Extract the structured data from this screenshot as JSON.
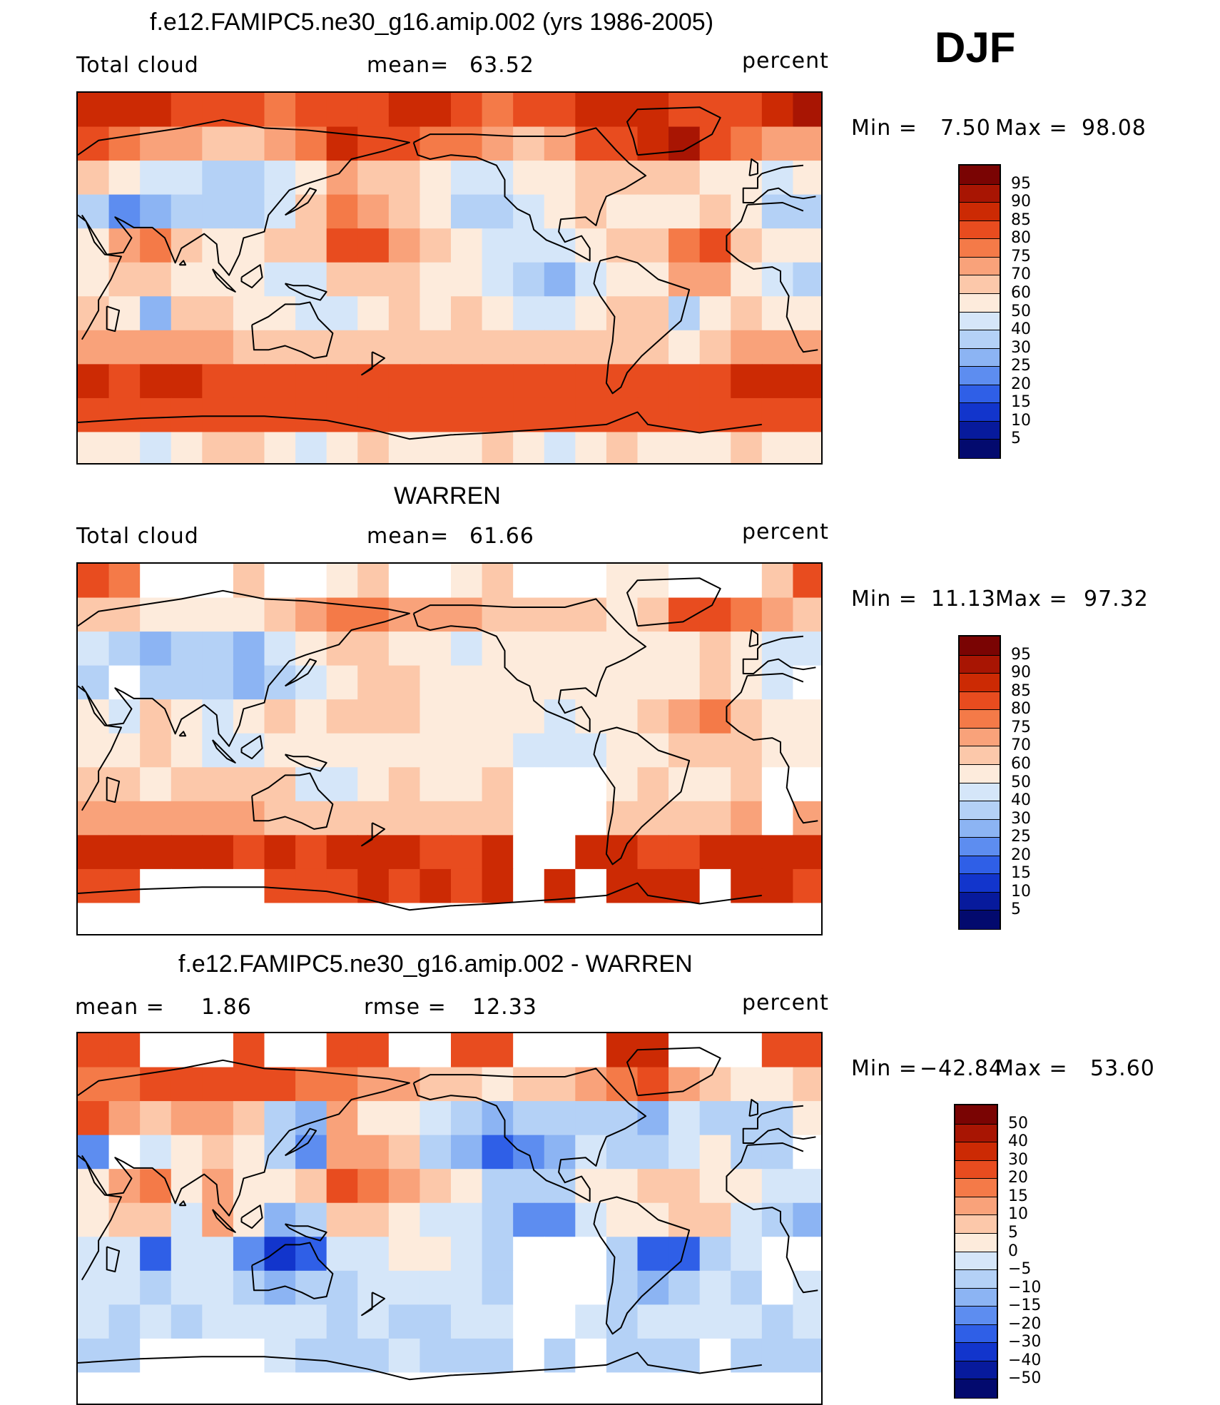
{
  "season": "DJF",
  "panels": [
    {
      "title": "f.e12.FAMIPC5.ne30_g16.amip.002 (yrs 1986-2005)",
      "left_label": "Total cloud",
      "stat1_label": "mean=",
      "stat1_value": "63.52",
      "stat2_label": "",
      "stat2_value": "",
      "units": "percent",
      "min_label": "Min =",
      "min_value": "7.50",
      "max_label": "Max =",
      "max_value": "98.08",
      "colorbar": {
        "levels": [
          "95",
          "90",
          "85",
          "80",
          "75",
          "70",
          "60",
          "50",
          "40",
          "30",
          "25",
          "20",
          "15",
          "10",
          "5"
        ],
        "colors": [
          "#7a0403",
          "#a81503",
          "#cc2a04",
          "#e84c1f",
          "#f47a48",
          "#f9a27a",
          "#fcc8aa",
          "#fdebdc",
          "#d5e6f9",
          "#b4d1f6",
          "#8cb4f3",
          "#5d8df0",
          "#2f5fe7",
          "#1235cc",
          "#071a9c",
          "#030a6e"
        ]
      },
      "map_values": [
        [
          88,
          85,
          86,
          84,
          82,
          80,
          78,
          80,
          82,
          84,
          86,
          86,
          82,
          78,
          80,
          84,
          86,
          88,
          86,
          82,
          80,
          82,
          86,
          90
        ],
        [
          82,
          78,
          74,
          70,
          66,
          64,
          70,
          78,
          88,
          84,
          80,
          78,
          76,
          70,
          66,
          72,
          80,
          84,
          86,
          90,
          82,
          76,
          72,
          74
        ],
        [
          62,
          56,
          48,
          40,
          36,
          38,
          44,
          56,
          72,
          66,
          60,
          52,
          44,
          48,
          54,
          58,
          60,
          64,
          62,
          60,
          58,
          52,
          46,
          50
        ],
        [
          30,
          24,
          26,
          34,
          36,
          30,
          42,
          62,
          76,
          70,
          66,
          52,
          38,
          34,
          44,
          56,
          62,
          58,
          52,
          56,
          64,
          52,
          34,
          30
        ],
        [
          58,
          70,
          78,
          60,
          54,
          56,
          62,
          64,
          82,
          80,
          70,
          64,
          58,
          48,
          40,
          42,
          56,
          62,
          66,
          78,
          80,
          64,
          50,
          54
        ],
        [
          56,
          64,
          68,
          50,
          54,
          50,
          44,
          46,
          62,
          66,
          60,
          54,
          50,
          42,
          32,
          28,
          44,
          56,
          58,
          72,
          70,
          58,
          40,
          38
        ],
        [
          60,
          58,
          26,
          60,
          62,
          58,
          56,
          48,
          40,
          58,
          62,
          58,
          60,
          56,
          48,
          44,
          56,
          62,
          60,
          30,
          56,
          60,
          58,
          56
        ],
        [
          72,
          70,
          70,
          72,
          70,
          68,
          66,
          66,
          62,
          64,
          66,
          66,
          64,
          64,
          62,
          62,
          64,
          66,
          68,
          56,
          66,
          70,
          70,
          70
        ],
        [
          86,
          84,
          86,
          86,
          84,
          82,
          84,
          84,
          82,
          82,
          84,
          84,
          82,
          82,
          82,
          84,
          82,
          84,
          84,
          80,
          84,
          86,
          86,
          86
        ],
        [
          80,
          82,
          84,
          82,
          80,
          82,
          82,
          80,
          82,
          82,
          80,
          80,
          82,
          82,
          80,
          80,
          82,
          82,
          80,
          82,
          82,
          82,
          80,
          80
        ],
        [
          58,
          56,
          48,
          52,
          60,
          64,
          56,
          46,
          54,
          62,
          58,
          50,
          56,
          60,
          54,
          48,
          56,
          62,
          56,
          50,
          58,
          62,
          56,
          54
        ]
      ]
    },
    {
      "title": "WARREN",
      "left_label": "Total cloud",
      "stat1_label": "mean=",
      "stat1_value": "61.66",
      "stat2_label": "",
      "stat2_value": "",
      "units": "percent",
      "min_label": "Min =",
      "min_value": "11.13",
      "max_label": "Max =",
      "max_value": "97.32",
      "colorbar": {
        "levels": [
          "95",
          "90",
          "85",
          "80",
          "75",
          "70",
          "60",
          "50",
          "40",
          "30",
          "25",
          "20",
          "15",
          "10",
          "5"
        ],
        "colors": [
          "#7a0403",
          "#a81503",
          "#cc2a04",
          "#e84c1f",
          "#f47a48",
          "#f9a27a",
          "#fcc8aa",
          "#fdebdc",
          "#d5e6f9",
          "#b4d1f6",
          "#8cb4f3",
          "#5d8df0",
          "#2f5fe7",
          "#1235cc",
          "#071a9c",
          "#030a6e"
        ]
      },
      "map_values": [
        [
          80,
          78,
          null,
          null,
          null,
          60,
          null,
          null,
          56,
          60,
          null,
          null,
          58,
          64,
          null,
          null,
          null,
          52,
          50,
          null,
          null,
          null,
          60,
          80
        ],
        [
          66,
          60,
          56,
          52,
          54,
          58,
          62,
          70,
          76,
          78,
          74,
          70,
          72,
          66,
          62,
          64,
          62,
          58,
          60,
          82,
          80,
          76,
          70,
          66
        ],
        [
          42,
          36,
          28,
          36,
          30,
          26,
          40,
          58,
          62,
          62,
          58,
          52,
          48,
          54,
          56,
          58,
          56,
          54,
          52,
          58,
          62,
          52,
          44,
          42
        ],
        [
          30,
          null,
          30,
          34,
          30,
          28,
          36,
          48,
          56,
          60,
          60,
          54,
          50,
          52,
          56,
          56,
          54,
          56,
          52,
          58,
          60,
          54,
          40,
          null
        ],
        [
          58,
          48,
          62,
          56,
          44,
          52,
          60,
          56,
          60,
          62,
          60,
          58,
          56,
          54,
          50,
          48,
          54,
          58,
          60,
          72,
          76,
          60,
          52,
          56
        ],
        [
          56,
          54,
          62,
          52,
          40,
          48,
          56,
          54,
          54,
          58,
          58,
          56,
          54,
          52,
          48,
          44,
          48,
          52,
          54,
          66,
          62,
          60,
          50,
          52
        ],
        [
          64,
          62,
          52,
          62,
          62,
          60,
          60,
          46,
          44,
          58,
          60,
          58,
          58,
          60,
          null,
          null,
          null,
          58,
          60,
          52,
          58,
          60,
          null,
          null
        ],
        [
          72,
          70,
          70,
          70,
          72,
          70,
          68,
          66,
          66,
          68,
          68,
          66,
          66,
          68,
          null,
          null,
          null,
          66,
          66,
          64,
          66,
          70,
          null,
          72
        ],
        [
          86,
          86,
          88,
          86,
          86,
          84,
          86,
          84,
          86,
          88,
          86,
          84,
          84,
          86,
          null,
          null,
          88,
          86,
          84,
          84,
          86,
          88,
          86,
          86
        ],
        [
          80,
          82,
          null,
          null,
          null,
          null,
          82,
          84,
          84,
          86,
          84,
          86,
          84,
          86,
          null,
          88,
          null,
          86,
          88,
          86,
          null,
          86,
          88,
          82
        ],
        [
          null,
          null,
          null,
          null,
          null,
          null,
          null,
          null,
          null,
          null,
          null,
          null,
          null,
          null,
          null,
          null,
          null,
          null,
          null,
          null,
          null,
          null,
          null,
          null
        ]
      ]
    },
    {
      "title": "f.e12.FAMIPC5.ne30_g16.amip.002 - WARREN",
      "left_label": "mean =",
      "stat1_label": "",
      "stat1_value": "1.86",
      "stat2_label": "rmse =",
      "stat2_value": "12.33",
      "units": "percent",
      "min_label": "Min =",
      "min_value": "−42.84",
      "max_label": "Max =",
      "max_value": "53.60",
      "colorbar": {
        "levels": [
          "50",
          "40",
          "30",
          "20",
          "15",
          "10",
          "5",
          "0",
          "−5",
          "−10",
          "−15",
          "−20",
          "−30",
          "−40",
          "−50"
        ],
        "colors": [
          "#7a0403",
          "#a81503",
          "#cc2a04",
          "#e84c1f",
          "#f47a48",
          "#f9a27a",
          "#fcc8aa",
          "#fdebdc",
          "#d5e6f9",
          "#b4d1f6",
          "#8cb4f3",
          "#5d8df0",
          "#2f5fe7",
          "#1235cc",
          "#071a9c",
          "#030a6e"
        ]
      },
      "map_values": [
        [
          24,
          22,
          null,
          null,
          null,
          20,
          null,
          null,
          24,
          26,
          null,
          null,
          22,
          26,
          null,
          null,
          null,
          34,
          30,
          null,
          null,
          null,
          20,
          24
        ],
        [
          16,
          18,
          20,
          22,
          24,
          24,
          22,
          16,
          18,
          10,
          10,
          8,
          6,
          4,
          6,
          8,
          12,
          18,
          20,
          10,
          6,
          4,
          4,
          6
        ],
        [
          20,
          14,
          8,
          10,
          12,
          8,
          -8,
          -14,
          10,
          4,
          2,
          -4,
          -10,
          -12,
          -10,
          -8,
          -6,
          -10,
          -12,
          -2,
          -6,
          -10,
          -8,
          2
        ],
        [
          -20,
          null,
          -4,
          4,
          6,
          2,
          -10,
          -20,
          14,
          10,
          6,
          -6,
          -14,
          -22,
          -18,
          -12,
          -4,
          -6,
          -10,
          -4,
          2,
          -6,
          -10,
          null
        ],
        [
          0,
          12,
          16,
          4,
          10,
          4,
          2,
          8,
          22,
          18,
          10,
          6,
          2,
          -6,
          -10,
          -6,
          2,
          4,
          6,
          6,
          4,
          4,
          -2,
          -2
        ],
        [
          0,
          8,
          6,
          -2,
          14,
          2,
          -12,
          -8,
          8,
          8,
          2,
          -2,
          -4,
          -10,
          -16,
          -16,
          -4,
          4,
          4,
          6,
          8,
          -2,
          -10,
          -14
        ],
        [
          -4,
          -4,
          -26,
          -2,
          -4,
          -18,
          -34,
          -28,
          -4,
          -4,
          2,
          0,
          -4,
          -10,
          null,
          null,
          null,
          -8,
          -30,
          -22,
          -6,
          -4,
          null,
          null
        ],
        [
          -2,
          -4,
          -6,
          -2,
          -4,
          -6,
          -14,
          -8,
          -6,
          -4,
          -2,
          -2,
          -4,
          -6,
          null,
          null,
          null,
          -6,
          -12,
          -6,
          -2,
          -6,
          null,
          -2
        ],
        [
          -4,
          -6,
          -4,
          -6,
          -4,
          -2,
          -4,
          -4,
          -6,
          -4,
          -6,
          -6,
          -4,
          -4,
          null,
          null,
          -4,
          -6,
          -4,
          -4,
          -4,
          -4,
          -6,
          -4
        ],
        [
          -6,
          -8,
          null,
          null,
          null,
          null,
          -4,
          -6,
          -6,
          -6,
          -4,
          -8,
          -6,
          -6,
          null,
          -10,
          null,
          -8,
          -6,
          -8,
          null,
          -6,
          -8,
          -6
        ],
        [
          null,
          null,
          null,
          null,
          null,
          null,
          null,
          null,
          null,
          null,
          null,
          null,
          null,
          null,
          null,
          null,
          null,
          null,
          null,
          null,
          null,
          null,
          null,
          null
        ]
      ]
    }
  ]
}
